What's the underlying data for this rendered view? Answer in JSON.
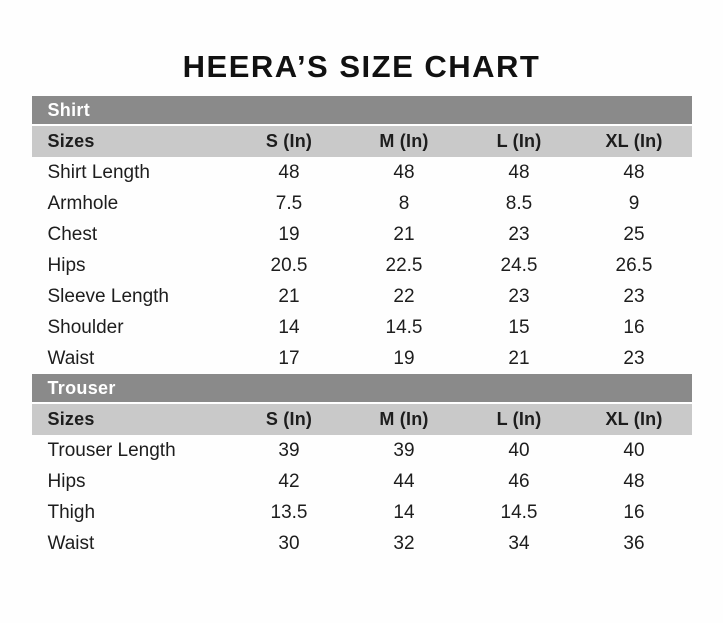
{
  "page": {
    "title": "HEERA’S SIZE CHART"
  },
  "colors": {
    "background": "#fefefe",
    "section_header_bg": "#8a8a8a",
    "section_header_text": "#ffffff",
    "column_header_bg": "#c9c9c9",
    "body_text": "#1d1d1d"
  },
  "sections": [
    {
      "name": "Shirt",
      "columns": [
        "Sizes",
        "S (In)",
        "M (In)",
        "L (In)",
        "XL (In)"
      ],
      "rows": [
        {
          "label": "Shirt Length",
          "values": [
            "48",
            "48",
            "48",
            "48"
          ]
        },
        {
          "label": "Armhole",
          "values": [
            "7.5",
            "8",
            "8.5",
            "9"
          ]
        },
        {
          "label": "Chest",
          "values": [
            "19",
            "21",
            "23",
            "25"
          ]
        },
        {
          "label": "Hips",
          "values": [
            "20.5",
            "22.5",
            "24.5",
            "26.5"
          ]
        },
        {
          "label": "Sleeve Length",
          "values": [
            "21",
            "22",
            "23",
            "23"
          ]
        },
        {
          "label": "Shoulder",
          "values": [
            "14",
            "14.5",
            "15",
            "16"
          ]
        },
        {
          "label": "Waist",
          "values": [
            "17",
            "19",
            "21",
            "23"
          ]
        }
      ]
    },
    {
      "name": "Trouser",
      "columns": [
        "Sizes",
        "S (In)",
        "M (In)",
        "L (In)",
        "XL (In)"
      ],
      "rows": [
        {
          "label": "Trouser Length",
          "values": [
            "39",
            "39",
            "40",
            "40"
          ]
        },
        {
          "label": "Hips",
          "values": [
            "42",
            "44",
            "46",
            "48"
          ]
        },
        {
          "label": "Thigh",
          "values": [
            "13.5",
            "14",
            "14.5",
            "16"
          ]
        },
        {
          "label": "Waist",
          "values": [
            "30",
            "32",
            "34",
            "36"
          ]
        }
      ]
    }
  ]
}
